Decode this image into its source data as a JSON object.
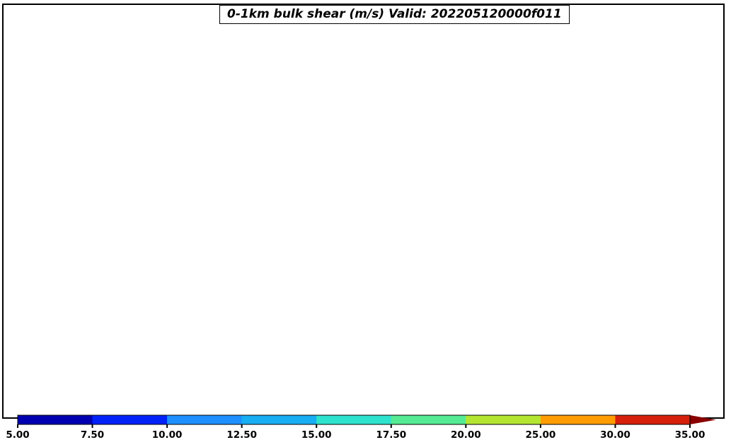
{
  "title": {
    "text": "0-1km bulk shear (m/s) Valid: 202205120000f011",
    "variable": "0-1km bulk shear",
    "units": "m/s",
    "valid": "202205120000f011"
  },
  "colorbar": {
    "orientation": "horizontal",
    "ticks": [
      "5.00",
      "7.50",
      "10.00",
      "12.50",
      "15.00",
      "17.50",
      "20.00",
      "25.00",
      "30.00",
      "35.00"
    ],
    "tick_values": [
      5.0,
      7.5,
      10.0,
      12.5,
      15.0,
      17.5,
      20.0,
      25.0,
      30.0,
      35.0
    ],
    "segments": [
      {
        "from": 5.0,
        "to": 7.5,
        "color": "#0000B0"
      },
      {
        "from": 7.5,
        "to": 10.0,
        "color": "#0021F8"
      },
      {
        "from": 10.0,
        "to": 12.5,
        "color": "#1E90FF"
      },
      {
        "from": 12.5,
        "to": 15.0,
        "color": "#17AEF4"
      },
      {
        "from": 15.0,
        "to": 17.5,
        "color": "#2EE3CE"
      },
      {
        "from": 17.5,
        "to": 20.0,
        "color": "#55EB94"
      },
      {
        "from": 20.0,
        "to": 25.0,
        "color": "#B4E631"
      },
      {
        "from": 25.0,
        "to": 30.0,
        "color": "#FF9D00"
      },
      {
        "from": 30.0,
        "to": 35.0,
        "color": "#D6200C"
      }
    ],
    "overflow_color": "#8A0000",
    "label_color": "#000000"
  },
  "map": {
    "background": "#FFFFFF",
    "frame_color": "#000000",
    "state_border_color": "#000000",
    "water_outline_color": "#000000"
  }
}
